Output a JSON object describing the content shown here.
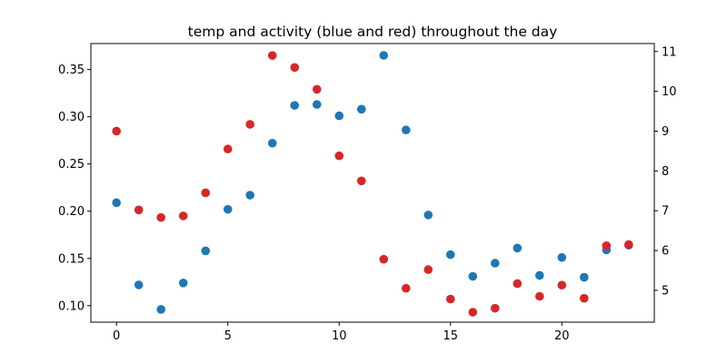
{
  "chart_data": {
    "type": "scatter",
    "title": "temp and activity (blue and red) throughout the day",
    "xlabel": "",
    "ylabel": "",
    "y2label": "",
    "xlim": [
      -1.15,
      24.15
    ],
    "ylim": [
      0.0825,
      0.3775
    ],
    "y2lim": [
      4.2,
      11.2
    ],
    "x_ticks": [
      0,
      5,
      10,
      15,
      20
    ],
    "y_ticks": [
      0.1,
      0.15,
      0.2,
      0.25,
      0.3,
      0.35
    ],
    "y_tick_labels": [
      "0.10",
      "0.15",
      "0.20",
      "0.25",
      "0.30",
      "0.35"
    ],
    "y2_ticks": [
      5,
      6,
      7,
      8,
      9,
      10,
      11
    ],
    "grid": false,
    "legend": "none",
    "series": [
      {
        "axis": "left",
        "color": "#1f77b4",
        "x": [
          0,
          1,
          2,
          3,
          4,
          5,
          6,
          7,
          8,
          9,
          10,
          11,
          12,
          13,
          14,
          15,
          16,
          17,
          18,
          19,
          20,
          21,
          22,
          23
        ],
        "y": [
          0.209,
          0.122,
          0.096,
          0.124,
          0.158,
          0.202,
          0.217,
          0.272,
          0.312,
          0.313,
          0.301,
          0.308,
          0.365,
          0.286,
          0.196,
          0.154,
          0.131,
          0.145,
          0.161,
          0.132,
          0.151,
          0.13,
          0.159,
          0.164
        ]
      },
      {
        "axis": "right",
        "color": "#d62728",
        "x": [
          0,
          1,
          2,
          3,
          4,
          5,
          6,
          7,
          8,
          9,
          10,
          11,
          12,
          13,
          14,
          15,
          16,
          17,
          18,
          19,
          20,
          21,
          22,
          23
        ],
        "y": [
          9.0,
          7.02,
          6.83,
          6.87,
          7.45,
          8.55,
          9.17,
          10.9,
          10.6,
          10.05,
          8.38,
          7.75,
          5.78,
          5.05,
          5.52,
          4.78,
          4.45,
          4.55,
          5.17,
          4.85,
          5.13,
          4.8,
          6.12,
          6.15
        ]
      }
    ]
  }
}
